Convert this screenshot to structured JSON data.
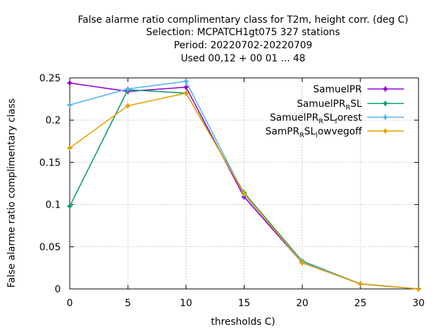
{
  "chart_data": {
    "type": "line",
    "title_lines": [
      "False alarme ratio complimentary class  for T2m, height corr. (deg C)",
      "Selection: MCPATCH1gt075    327 stations",
      "Period: 20220702-20220709",
      "Used  00,12  + 00 01 ... 48"
    ],
    "xlabel": "thresholds C)",
    "ylabel": "False alarme ratio complimentary class",
    "x": [
      0,
      5,
      10,
      15,
      20,
      25,
      30
    ],
    "xlim": [
      0,
      30
    ],
    "ylim": [
      0,
      0.25
    ],
    "x_ticks": [
      "0",
      "5",
      "10",
      "15",
      "20",
      "25",
      "30"
    ],
    "y_ticks": [
      "0",
      "0.05",
      "0.1",
      "0.15",
      "0.2",
      "0.25"
    ],
    "grid": true,
    "legend_position": "top-right",
    "series": [
      {
        "name": "SamuelPR",
        "name_parts": [
          {
            "t": "SamuelPR",
            "s": ""
          }
        ],
        "color": "#9400d3",
        "values": [
          0.244,
          0.234,
          0.239,
          0.109,
          0.031,
          0.006,
          0.0
        ]
      },
      {
        "name": "SamuelPR_RSL",
        "name_parts": [
          {
            "t": "SamuelPR",
            "s": ""
          },
          {
            "t": "R",
            "s": "sub"
          },
          {
            "t": "SL",
            "s": ""
          }
        ],
        "color": "#009e73",
        "values": [
          0.098,
          0.236,
          0.232,
          0.114,
          0.033,
          0.006,
          0.0
        ]
      },
      {
        "name": "SamuelPR_RSL_forest",
        "name_parts": [
          {
            "t": "SamuelPR",
            "s": ""
          },
          {
            "t": "R",
            "s": "sub"
          },
          {
            "t": "SL",
            "s": ""
          },
          {
            "t": "f",
            "s": "sub"
          },
          {
            "t": "orest",
            "s": ""
          }
        ],
        "color": "#56b4e9",
        "values": [
          0.218,
          0.237,
          0.246,
          0.112,
          0.032,
          0.006,
          0.0
        ]
      },
      {
        "name": "SamPR_RSL_lowvegoff",
        "name_parts": [
          {
            "t": "SamPR",
            "s": ""
          },
          {
            "t": "R",
            "s": "sub"
          },
          {
            "t": "SL",
            "s": ""
          },
          {
            "t": "l",
            "s": "sub"
          },
          {
            "t": "owvegoff",
            "s": ""
          }
        ],
        "color": "#e69f00",
        "values": [
          0.167,
          0.217,
          0.232,
          0.113,
          0.031,
          0.006,
          0.0
        ]
      }
    ]
  }
}
